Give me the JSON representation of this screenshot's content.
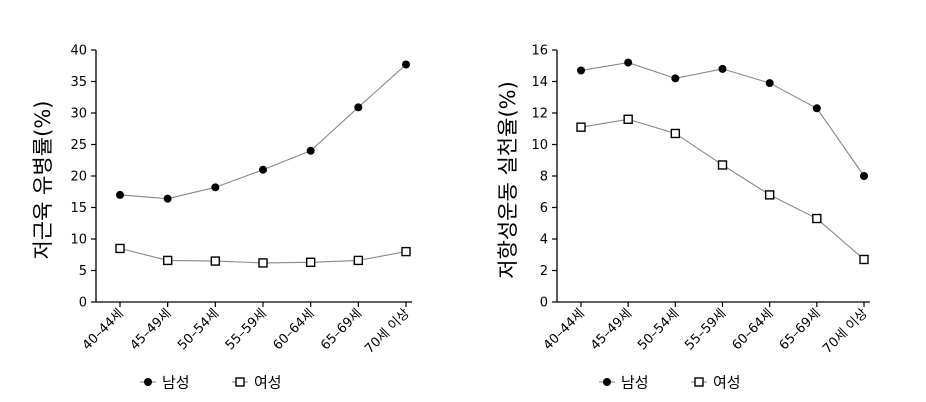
{
  "chart_data": [
    {
      "type": "line",
      "ylabel": "저근육 유병률(%)",
      "xlabel": "",
      "categories": [
        "40–44세",
        "45–49세",
        "50–54세",
        "55–59세",
        "60–64세",
        "65–69세",
        "70세 이상"
      ],
      "ylim": [
        0,
        40
      ],
      "yticks": [
        0,
        5,
        10,
        15,
        20,
        25,
        30,
        35,
        40
      ],
      "series": [
        {
          "name": "남성",
          "marker": "filled-circle",
          "values": [
            17.0,
            16.4,
            18.2,
            21.0,
            24.0,
            30.9,
            37.7
          ]
        },
        {
          "name": "여성",
          "marker": "open-square",
          "values": [
            8.5,
            6.6,
            6.5,
            6.2,
            6.3,
            6.6,
            8.0
          ]
        }
      ],
      "legend_position": "bottom",
      "grid": false
    },
    {
      "type": "line",
      "ylabel": "저항성운동 실천율(%)",
      "xlabel": "",
      "categories": [
        "40–44세",
        "45–49세",
        "50–54세",
        "55–59세",
        "60–64세",
        "65–69세",
        "70세 이상"
      ],
      "ylim": [
        0,
        16
      ],
      "yticks": [
        0,
        2,
        4,
        6,
        8,
        10,
        12,
        14,
        16
      ],
      "series": [
        {
          "name": "남성",
          "marker": "filled-circle",
          "values": [
            14.7,
            15.2,
            14.2,
            14.8,
            13.9,
            12.3,
            8.0
          ]
        },
        {
          "name": "여성",
          "marker": "open-square",
          "values": [
            11.1,
            11.6,
            10.7,
            8.7,
            6.8,
            5.3,
            2.7
          ]
        }
      ],
      "legend_position": "bottom",
      "grid": false
    }
  ],
  "colors": {
    "line": "#888888",
    "marker": "#000000",
    "axis": "#000000"
  }
}
